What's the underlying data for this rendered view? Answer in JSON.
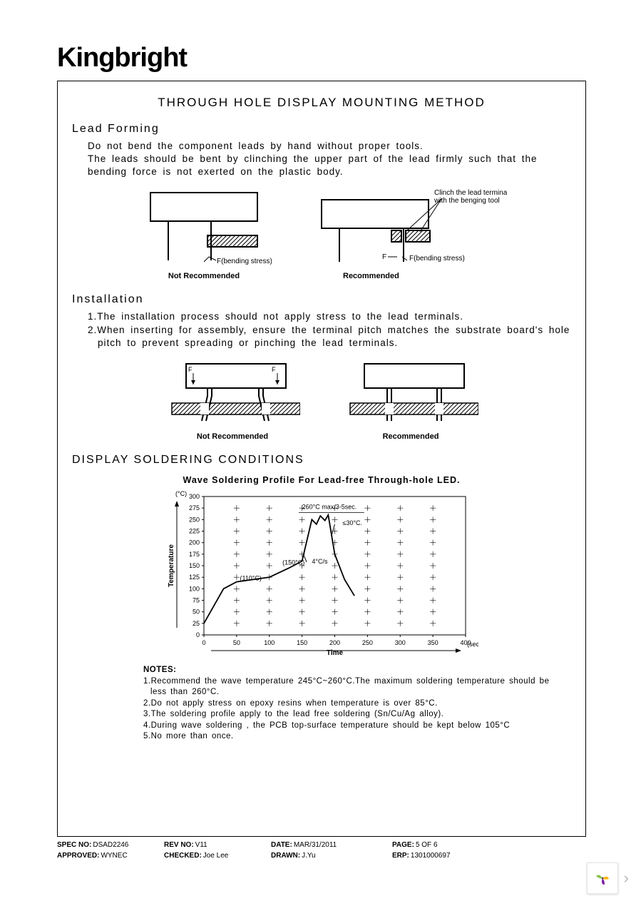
{
  "brand": "Kingbright",
  "title": "THROUGH HOLE DISPLAY MOUNTING METHOD",
  "leadForming": {
    "heading": "Lead Forming",
    "p1": "Do not bend the component leads by hand without proper tools.",
    "p2": "The leads should be bent by clinching the upper part of the lead firmly such that the bending force is not exerted on the plastic body.",
    "diagLeft": {
      "caption": "Not Recommended",
      "fLabel": "F(bending stress)"
    },
    "diagRight": {
      "caption": "Recommended",
      "note": "Clinch the lead terminal with the benging tool",
      "fLabel": "F",
      "fLabel2": "F(bending stress)"
    }
  },
  "installation": {
    "heading": "Installation",
    "item1": "1.The installation process should not apply stress to the lead terminals.",
    "item2": "2.When inserting for assembly, ensure the terminal pitch matches the substrate board's  hole pitch to prevent spreading or pinching the lead terminals.",
    "diagLeft": {
      "caption": "Not Recommended",
      "f": "F"
    },
    "diagRight": {
      "caption": "Recommended"
    }
  },
  "soldering": {
    "heading": "DISPLAY SOLDERING CONDITIONS",
    "chartTitle": "Wave Soldering Profile For Lead-free Through-hole LED.",
    "chart": {
      "type": "line",
      "ylabel": "Temperature",
      "yunit": "(°C)",
      "xlabel": "Time",
      "xunit": "(sec)",
      "ylim": [
        0,
        300
      ],
      "ytick_step": 25,
      "xlim": [
        0,
        400
      ],
      "xtick_step": 50,
      "yticks": [
        0,
        25,
        50,
        75,
        100,
        125,
        150,
        175,
        200,
        225,
        250,
        275,
        300
      ],
      "xticks": [
        0,
        50,
        100,
        150,
        200,
        250,
        300,
        350,
        400
      ],
      "line_color": "#000000",
      "grid_color": "#000000",
      "background_color": "#ffffff",
      "profile_points": [
        [
          0,
          25
        ],
        [
          30,
          100
        ],
        [
          50,
          115
        ],
        [
          100,
          125
        ],
        [
          130,
          145
        ],
        [
          150,
          160
        ],
        [
          165,
          250
        ],
        [
          172,
          240
        ],
        [
          178,
          258
        ],
        [
          185,
          248
        ],
        [
          190,
          260
        ],
        [
          200,
          175
        ],
        [
          215,
          120
        ],
        [
          230,
          85
        ]
      ],
      "annotations": {
        "a110": "(110°C)",
        "a150": "(150°C)",
        "slope": "4°C/s",
        "peak": "260°C max/3-5sec.",
        "cool": "≤30°C."
      }
    },
    "notesHead": "NOTES:",
    "note1": "1.Recommend the wave temperature 245°C~260°C.The maximum soldering temperature should be less than 260°C.",
    "note2": "2.Do not apply stress on epoxy resins when temperature is over 85°C.",
    "note3": "3.The soldering profile apply to the lead free soldering (Sn/Cu/Ag alloy).",
    "note4": "4.During wave soldering , the PCB top-surface temperature should be kept below 105°C",
    "note5": "5.No more than once."
  },
  "footer": {
    "specLbl": "SPEC NO:",
    "spec": "DSAD2246",
    "revLbl": "REV NO:",
    "rev": "V11",
    "dateLbl": "DATE:",
    "date": "MAR/31/2011",
    "pageLbl": "PAGE:",
    "page": "5 OF 6",
    "apprLbl": "APPROVED:",
    "appr": "WYNEC",
    "chkLbl": "CHECKED:",
    "chk": "Joe Lee",
    "drawnLbl": "DRAWN:",
    "drawn": "J.Yu",
    "erpLbl": "ERP:",
    "erp": "1301000697"
  }
}
